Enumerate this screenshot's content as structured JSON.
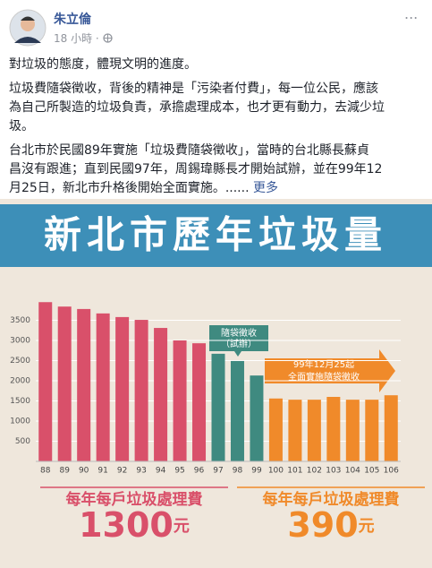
{
  "post": {
    "author": "朱立倫",
    "time": "18 小時",
    "more_menu": "...",
    "paragraphs": [
      [
        "對垃圾的態度，體現文明的進度。"
      ],
      [
        "垃圾費隨袋徵收，背後的精神是「污染者付費」，每一位公民，應該",
        "為自己所製造的垃圾負責，承擔處理成本，也才更有動力，去減少垃",
        "圾。"
      ],
      [
        "台北市於民國89年實施「垃圾費隨袋徵收」，當時的台北縣長蘇貞",
        "昌沒有跟進；直到民國97年，周錫瑋縣長才開始試辦，並在99年12",
        "月25日，新北市升格後開始全面實施。......"
      ]
    ],
    "see_more": "更多"
  },
  "chart_data": {
    "type": "bar",
    "title": "新北市歷年垃圾量",
    "categories": [
      "88",
      "89",
      "90",
      "91",
      "92",
      "93",
      "94",
      "95",
      "96",
      "97",
      "98",
      "99",
      "100",
      "101",
      "102",
      "103",
      "104",
      "105",
      "106"
    ],
    "values": [
      3950,
      3840,
      3780,
      3670,
      3580,
      3510,
      3310,
      3000,
      2930,
      2670,
      2490,
      2130,
      1560,
      1530,
      1530,
      1600,
      1530,
      1530,
      1640
    ],
    "colors": [
      "#d9506a",
      "#d9506a",
      "#d9506a",
      "#d9506a",
      "#d9506a",
      "#d9506a",
      "#d9506a",
      "#d9506a",
      "#d9506a",
      "#3f8a80",
      "#3f8a80",
      "#3f8a80",
      "#f08a2a",
      "#f08a2a",
      "#f08a2a",
      "#f08a2a",
      "#f08a2a",
      "#f08a2a",
      "#f08a2a"
    ],
    "ylim": [
      0,
      4000
    ],
    "yticks": [
      500,
      1000,
      1500,
      2000,
      2500,
      3000,
      3500
    ],
    "grid": true,
    "annotations": {
      "trial": [
        "隨袋徵收",
        "（試辦）"
      ],
      "full": [
        "99年12月25起",
        "全面實施隨袋徵收"
      ]
    },
    "fees": [
      {
        "label": "每年每戶垃圾處理費",
        "amount": "1300",
        "unit": "元",
        "color": "#d9506a"
      },
      {
        "label": "每年每戶垃圾處理費",
        "amount": "390",
        "unit": "元",
        "color": "#f08a2a"
      }
    ]
  }
}
